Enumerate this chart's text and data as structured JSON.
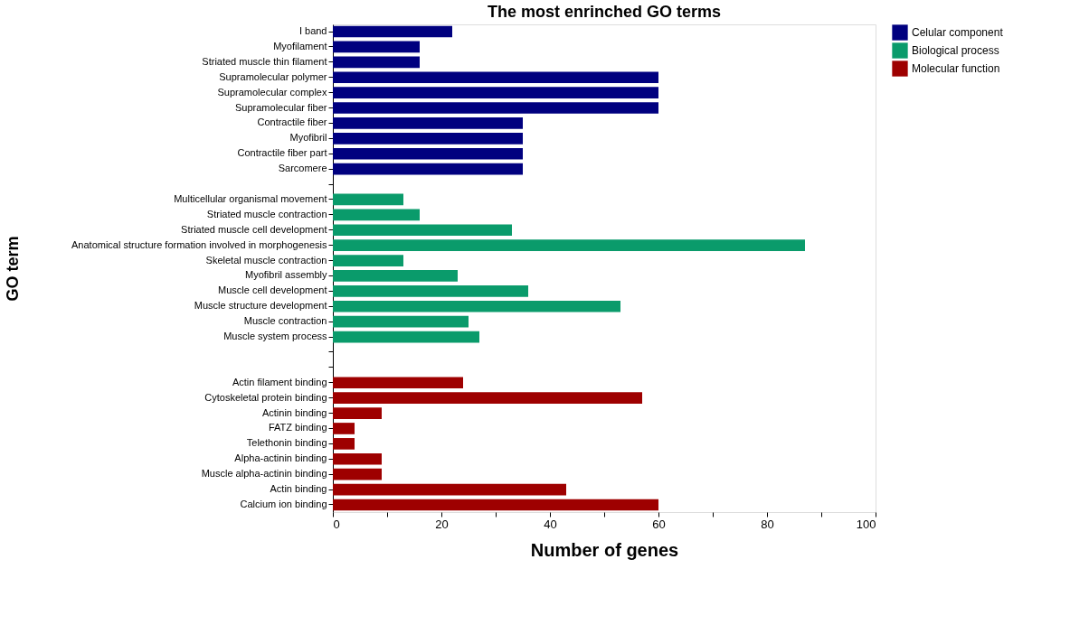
{
  "chart_data": {
    "type": "bar",
    "orientation": "horizontal",
    "title": "The most enrinched GO terms",
    "xlabel": "Number of genes",
    "ylabel": "GO term",
    "categories": [
      "I band",
      "Myofilament",
      "Striated muscle thin filament",
      "Supramolecular polymer",
      "Supramolecular complex",
      "Supramolecular fiber",
      "Contractile fiber",
      "Myofibril",
      "Contractile fiber part",
      "Sarcomere",
      null,
      "Multicellular organismal movement",
      "Striated muscle contraction",
      "Striated muscle cell development",
      "Anatomical structure formation involved in morphogenesis",
      "Skeletal muscle contraction",
      "Myofibril assembly",
      "Muscle cell development",
      "Muscle structure development",
      "Muscle contraction",
      "Muscle system process",
      null,
      null,
      "Actin filament binding",
      "Cytoskeletal protein binding",
      "Actinin binding",
      "FATZ binding",
      "Telethonin binding",
      "Alpha-actinin binding",
      "Muscle alpha-actinin binding",
      "Actin binding",
      "Calcium ion binding"
    ],
    "series": [
      {
        "name": "Celular component",
        "color": "#00007f",
        "values": [
          22,
          16,
          16,
          60,
          60,
          60,
          35,
          35,
          35,
          35,
          null,
          null,
          null,
          null,
          null,
          null,
          null,
          null,
          null,
          null,
          null,
          null,
          null,
          null,
          null,
          null,
          null,
          null,
          null,
          null,
          null,
          null
        ]
      },
      {
        "name": "Biological process",
        "color": "#0a9b6b",
        "values": [
          null,
          null,
          null,
          null,
          null,
          null,
          null,
          null,
          null,
          null,
          null,
          13,
          16,
          33,
          87,
          13,
          23,
          36,
          53,
          25,
          27,
          null,
          null,
          null,
          null,
          null,
          null,
          null,
          null,
          null,
          null,
          null
        ]
      },
      {
        "name": "Molecular function",
        "color": "#9e0000",
        "values": [
          null,
          null,
          null,
          null,
          null,
          null,
          null,
          null,
          null,
          null,
          null,
          null,
          null,
          null,
          null,
          null,
          null,
          null,
          null,
          null,
          null,
          null,
          null,
          24,
          57,
          9,
          4,
          4,
          9,
          9,
          43,
          60
        ]
      }
    ],
    "xlim": [
      0,
      100
    ],
    "xticks": [
      0,
      {
        "value": 10,
        "label": null
      },
      20,
      {
        "value": 30,
        "label": null
      },
      40,
      {
        "value": 50,
        "label": null
      },
      60,
      {
        "value": 70,
        "label": null
      },
      80,
      {
        "value": 90,
        "label": null
      },
      100
    ],
    "grid": false,
    "legend": "right"
  }
}
